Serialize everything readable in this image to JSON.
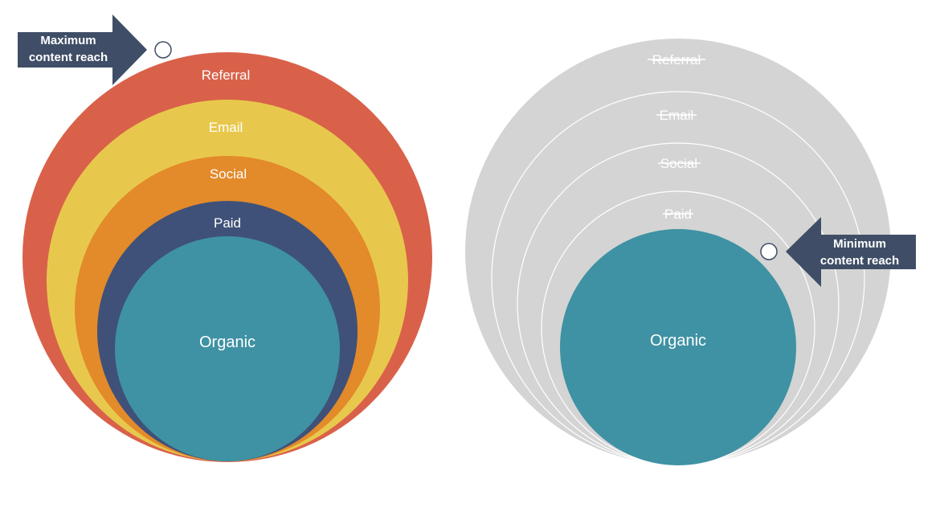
{
  "colors": {
    "referral": "#D9614A",
    "email": "#E8C84C",
    "social": "#E38A2A",
    "paid": "#3F5178",
    "organic": "#3E92A3",
    "gray": "#D4D4D4",
    "callout": "#3F4E66",
    "white": "#FFFFFF"
  },
  "left_diagram": {
    "layers": [
      {
        "key": "referral",
        "label": "Referral"
      },
      {
        "key": "email",
        "label": "Email"
      },
      {
        "key": "social",
        "label": "Social"
      },
      {
        "key": "paid",
        "label": "Paid"
      },
      {
        "key": "organic",
        "label": "Organic"
      }
    ],
    "callout": {
      "line1": "Maximum",
      "line2": "content reach",
      "direction": "right"
    }
  },
  "right_diagram": {
    "layers": [
      {
        "key": "referral",
        "label": "Referral",
        "struck": true
      },
      {
        "key": "email",
        "label": "Email",
        "struck": true
      },
      {
        "key": "social",
        "label": "Social",
        "struck": true
      },
      {
        "key": "paid",
        "label": "Paid",
        "struck": true
      },
      {
        "key": "organic",
        "label": "Organic",
        "struck": false
      }
    ],
    "callout": {
      "line1": "Minimum",
      "line2": "content reach",
      "direction": "left"
    }
  }
}
